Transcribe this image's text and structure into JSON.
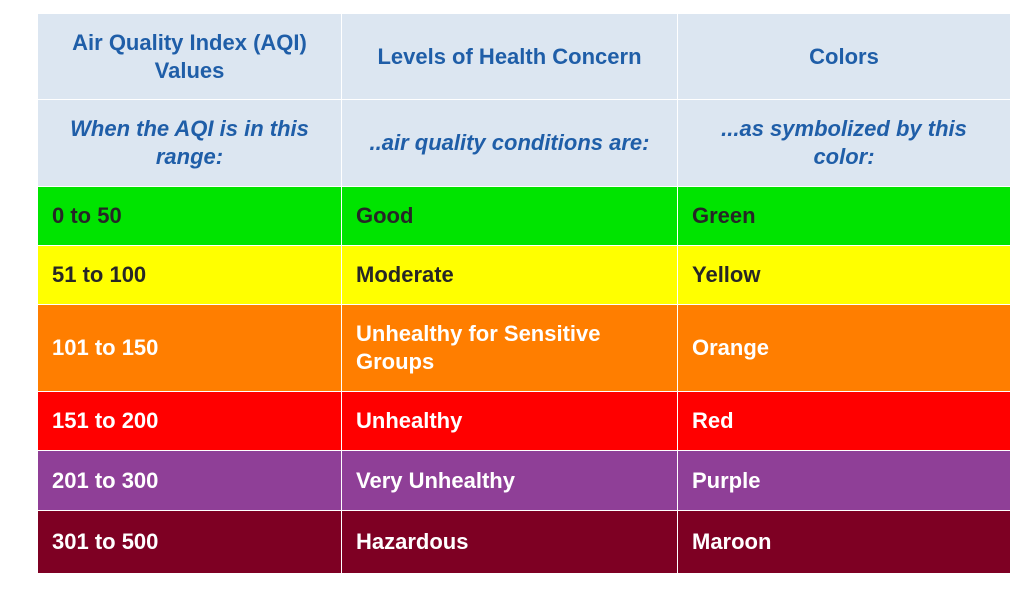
{
  "header": {
    "col1": "Air Quality Index (AQI) Values",
    "col2": "Levels of Health Concern",
    "col3": "Colors"
  },
  "subheader": {
    "col1": "When the AQI is in this range:",
    "col2": "..air quality conditions are:",
    "col3": "...as symbolized by this color:"
  },
  "rows": [
    {
      "range": "0 to 50",
      "level": "Good",
      "color_name": "Green",
      "bg": "#00e400",
      "fg": "#262626"
    },
    {
      "range": "51 to 100",
      "level": "Moderate",
      "color_name": "Yellow",
      "bg": "#ffff00",
      "fg": "#262626"
    },
    {
      "range": "101 to 150",
      "level": "Unhealthy for Sensitive Groups",
      "color_name": "Orange",
      "bg": "#ff7e00",
      "fg": "#ffffff"
    },
    {
      "range": "151 to 200",
      "level": "Unhealthy",
      "color_name": "Red",
      "bg": "#ff0000",
      "fg": "#ffffff"
    },
    {
      "range": "201 to 300",
      "level": "Very Unhealthy",
      "color_name": "Purple",
      "bg": "#8f3f97",
      "fg": "#ffffff"
    },
    {
      "range": "301 to 500",
      "level": "Hazardous",
      "color_name": "Maroon",
      "bg": "#7e0023",
      "fg": "#ffffff"
    }
  ]
}
